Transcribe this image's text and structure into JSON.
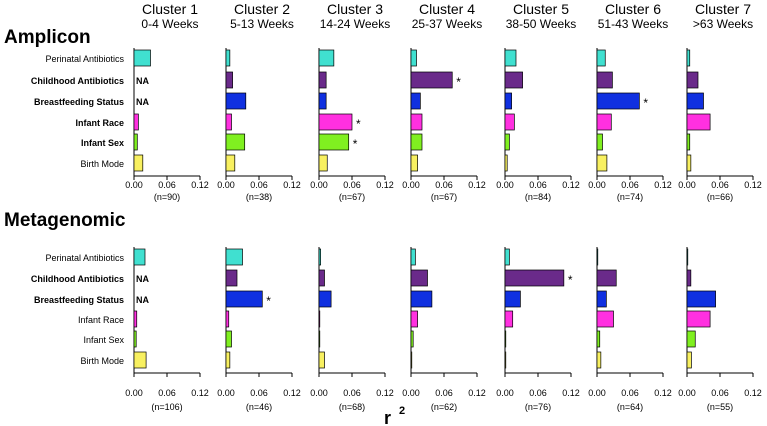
{
  "chart_data": {
    "type": "bar",
    "orientation": "horizontal",
    "xlabel": "r",
    "xlabel_superscript": "2",
    "xlim": [
      0,
      0.12
    ],
    "ticks": [
      "0.00",
      "0.06",
      "0.12"
    ],
    "tick_values": [
      0,
      0.06,
      0.12
    ],
    "clusters": [
      {
        "title": "Cluster 1",
        "subtitle": "0-4 Weeks"
      },
      {
        "title": "Cluster 2",
        "subtitle": "5-13 Weeks"
      },
      {
        "title": "Cluster 3",
        "subtitle": "14-24 Weeks"
      },
      {
        "title": "Cluster 4",
        "subtitle": "25-37 Weeks"
      },
      {
        "title": "Cluster 5",
        "subtitle": "38-50 Weeks"
      },
      {
        "title": "Cluster 6",
        "subtitle": "51-43 Weeks"
      },
      {
        "title": "Cluster 7",
        "subtitle": ">63 Weeks"
      }
    ],
    "variables": [
      {
        "name": "Perinatal Antibiotics",
        "color": "#40e0d0"
      },
      {
        "name": "Childhood Antibiotics",
        "color": "#6a2a8a"
      },
      {
        "name": "Breastfeeding Status",
        "color": "#1030e0"
      },
      {
        "name": "Infant Race",
        "color": "#ff30e0"
      },
      {
        "name": "Infant Sex",
        "color": "#80f020"
      },
      {
        "name": "Birth Mode",
        "color": "#f8f060"
      }
    ],
    "panels": [
      {
        "title": "Amplicon",
        "bold_labels": [
          false,
          true,
          true,
          true,
          true,
          false
        ],
        "n": [
          "(n=90)",
          "(n=38)",
          "(n=67)",
          "(n=67)",
          "(n=84)",
          "(n=74)",
          "(n=66)"
        ],
        "values": [
          [
            0.03,
            null,
            null,
            0.008,
            0.006,
            0.016
          ],
          [
            0.007,
            0.012,
            0.036,
            0.01,
            0.034,
            0.016
          ],
          [
            0.027,
            0.013,
            0.013,
            0.06,
            0.054,
            0.015
          ],
          [
            0.01,
            0.075,
            0.017,
            0.02,
            0.02,
            0.012
          ],
          [
            0.02,
            0.032,
            0.012,
            0.017,
            0.008,
            0.004
          ],
          [
            0.015,
            0.028,
            0.077,
            0.026,
            0.01,
            0.018
          ],
          [
            0.005,
            0.02,
            0.03,
            0.042,
            0.005,
            0.007
          ]
        ],
        "significant": [
          [
            false,
            false,
            false,
            false,
            false,
            false
          ],
          [
            false,
            false,
            false,
            false,
            false,
            false
          ],
          [
            false,
            false,
            false,
            true,
            true,
            false
          ],
          [
            false,
            true,
            false,
            false,
            false,
            false
          ],
          [
            false,
            false,
            false,
            false,
            false,
            false
          ],
          [
            false,
            false,
            true,
            false,
            false,
            false
          ],
          [
            false,
            false,
            false,
            false,
            false,
            false
          ]
        ]
      },
      {
        "title": "Metagenomic",
        "bold_labels": [
          false,
          true,
          true,
          false,
          false,
          false
        ],
        "n": [
          "(n=106)",
          "(n=46)",
          "(n=68)",
          "(n=62)",
          "(n=76)",
          "(n=64)",
          "(n=55)"
        ],
        "values": [
          [
            0.02,
            null,
            null,
            0.005,
            0.004,
            0.022
          ],
          [
            0.03,
            0.02,
            0.066,
            0.005,
            0.01,
            0.007
          ],
          [
            0.003,
            0.01,
            0.022,
            0.001,
            0.001,
            0.01
          ],
          [
            0.008,
            0.03,
            0.038,
            0.012,
            0.004,
            0.001
          ],
          [
            0.008,
            0.107,
            0.028,
            0.014,
            0.001,
            0.001
          ],
          [
            0.001,
            0.035,
            0.017,
            0.03,
            0.005,
            0.007
          ],
          [
            0.001,
            0.007,
            0.052,
            0.042,
            0.015,
            0.008
          ]
        ],
        "significant": [
          [
            false,
            false,
            false,
            false,
            false,
            false
          ],
          [
            false,
            false,
            true,
            false,
            false,
            false
          ],
          [
            false,
            false,
            false,
            false,
            false,
            false
          ],
          [
            false,
            false,
            false,
            false,
            false,
            false
          ],
          [
            false,
            true,
            false,
            false,
            false,
            false
          ],
          [
            false,
            false,
            false,
            false,
            false,
            false
          ],
          [
            false,
            false,
            false,
            false,
            false,
            false
          ]
        ]
      }
    ],
    "na_label": "NA",
    "star_label": "*"
  }
}
